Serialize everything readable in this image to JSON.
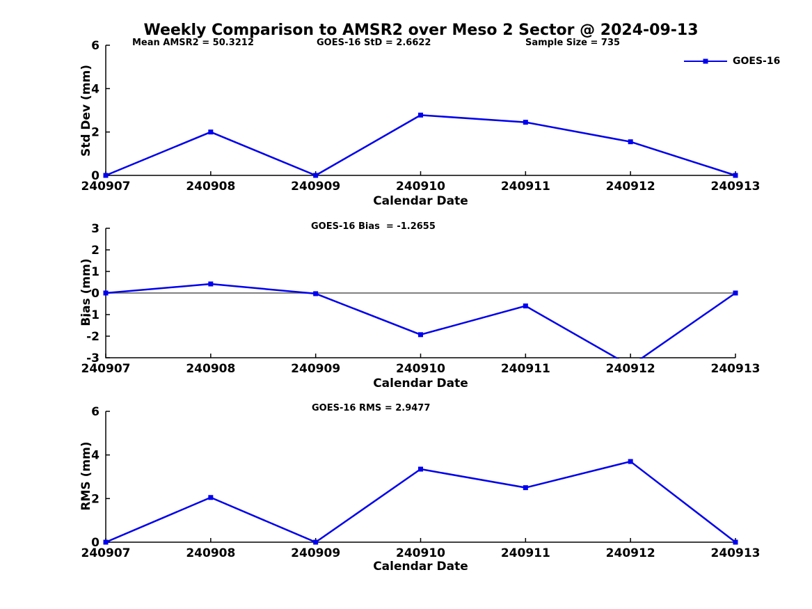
{
  "page_title": "Weekly Comparison to AMSR2 over Meso 2 Sector @ 2024-09-13",
  "colors": {
    "line": "#0000EE",
    "axis": "#000000",
    "zero_line": "#808080",
    "text": "#000000",
    "background": "#FFFFFF"
  },
  "legend": {
    "label": "GOES-16",
    "position": "top-right"
  },
  "chart_data": [
    {
      "type": "line",
      "annotations": [
        "Mean AMSR2 = 50.3212",
        "GOES-16 StD = 2.6622",
        "Sample Size = 735"
      ],
      "categories": [
        "240907",
        "240908",
        "240909",
        "240910",
        "240911",
        "240912",
        "240913"
      ],
      "series": [
        {
          "name": "GOES-16",
          "values": [
            0,
            2.0,
            0,
            2.78,
            2.45,
            1.55,
            0
          ]
        }
      ],
      "xlabel": "Calendar Date",
      "ylabel": "Std Dev (mm)",
      "ylim": [
        0,
        6
      ],
      "yticks": [
        0,
        2,
        4,
        6
      ],
      "grid": false,
      "zero_line": false,
      "marker": "square"
    },
    {
      "type": "line",
      "annotations": [
        "GOES-16 Bias  = -1.2655"
      ],
      "categories": [
        "240907",
        "240908",
        "240909",
        "240910",
        "240911",
        "240912",
        "240913"
      ],
      "series": [
        {
          "name": "GOES-16",
          "values": [
            0,
            0.42,
            -0.03,
            -1.93,
            -0.6,
            -3.38,
            0
          ]
        }
      ],
      "xlabel": "Calendar Date",
      "ylabel": "Bias (mm)",
      "ylim": [
        -3,
        3
      ],
      "yticks": [
        -3,
        -2,
        -1,
        0,
        1,
        2,
        3
      ],
      "grid": false,
      "zero_line": true,
      "marker": "square"
    },
    {
      "type": "line",
      "annotations": [
        "GOES-16 RMS = 2.9477"
      ],
      "categories": [
        "240907",
        "240908",
        "240909",
        "240910",
        "240911",
        "240912",
        "240913"
      ],
      "series": [
        {
          "name": "GOES-16",
          "values": [
            0,
            2.05,
            0,
            3.35,
            2.5,
            3.7,
            0
          ]
        }
      ],
      "xlabel": "Calendar Date",
      "ylabel": "RMS (mm)",
      "ylim": [
        0,
        6
      ],
      "yticks": [
        0,
        2,
        4,
        6
      ],
      "grid": false,
      "zero_line": false,
      "marker": "square"
    }
  ]
}
